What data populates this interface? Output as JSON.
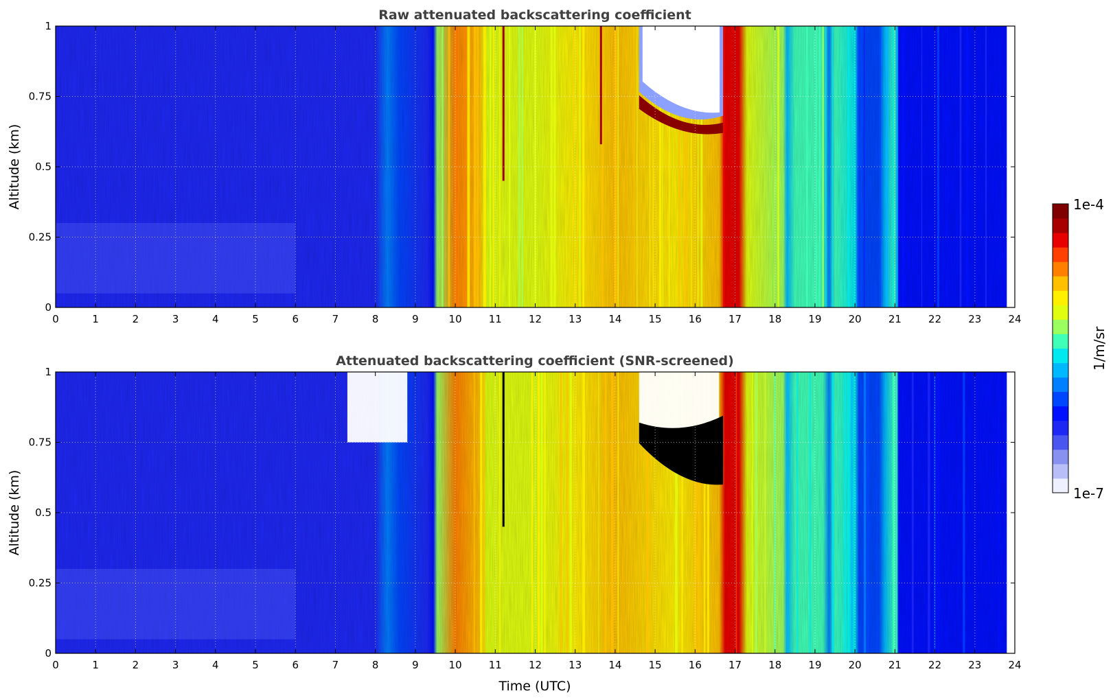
{
  "chart_data": [
    {
      "type": "heatmap",
      "title": "Raw attenuated backscattering coefficient",
      "xlabel": "",
      "ylabel": "Altitude (km)",
      "xlim": [
        0,
        24
      ],
      "ylim": [
        0,
        1
      ],
      "x_ticks": [
        "0",
        "1",
        "2",
        "3",
        "4",
        "5",
        "6",
        "7",
        "8",
        "9",
        "10",
        "11",
        "12",
        "13",
        "14",
        "15",
        "16",
        "17",
        "18",
        "19",
        "20",
        "21",
        "22",
        "23",
        "24"
      ],
      "y_ticks": [
        "0",
        "0.25",
        "0.5",
        "0.75",
        "1"
      ],
      "grid": true,
      "value_units": "1/m/sr",
      "value_scale": "log",
      "data_end_hour": 23.8,
      "background_profile": [
        {
          "t": 0,
          "v": 0.2
        },
        {
          "t": 6,
          "v": 0.2
        },
        {
          "t": 8,
          "v": 0.22
        },
        {
          "t": 8.3,
          "v": 0.36
        },
        {
          "t": 8.6,
          "v": 0.3
        },
        {
          "t": 9.3,
          "v": 0.22
        },
        {
          "t": 9.45,
          "v": 0.26
        },
        {
          "t": 9.55,
          "v": 0.58
        },
        {
          "t": 10,
          "v": 0.76
        },
        {
          "t": 10.6,
          "v": 0.74
        },
        {
          "t": 10.8,
          "v": 0.64
        },
        {
          "t": 11.5,
          "v": 0.62
        },
        {
          "t": 12,
          "v": 0.64
        },
        {
          "t": 13,
          "v": 0.66
        },
        {
          "t": 14,
          "v": 0.7
        },
        {
          "t": 15.5,
          "v": 0.68
        },
        {
          "t": 16.6,
          "v": 0.7
        },
        {
          "t": 16.75,
          "v": 0.88
        },
        {
          "t": 17.1,
          "v": 0.86
        },
        {
          "t": 17.3,
          "v": 0.62
        },
        {
          "t": 18.2,
          "v": 0.55
        },
        {
          "t": 18.3,
          "v": 0.42
        },
        {
          "t": 18.5,
          "v": 0.52
        },
        {
          "t": 19.2,
          "v": 0.52
        },
        {
          "t": 19.35,
          "v": 0.38
        },
        {
          "t": 19.5,
          "v": 0.5
        },
        {
          "t": 20,
          "v": 0.48
        },
        {
          "t": 20.1,
          "v": 0.32
        },
        {
          "t": 20.6,
          "v": 0.34
        },
        {
          "t": 20.75,
          "v": 0.44
        },
        {
          "t": 21,
          "v": 0.5
        },
        {
          "t": 21.1,
          "v": 0.28
        },
        {
          "t": 23.8,
          "v": 0.26
        }
      ],
      "cloud_layers": [
        {
          "t_start": 14.6,
          "t_end": 16.7,
          "base_km": 0.62,
          "top_km": 1.0,
          "peak": "1e-4"
        },
        {
          "t_start": 11.1,
          "t_end": 11.3,
          "base_km": 0.45,
          "top_km": 1.0,
          "peak": "1e-4"
        },
        {
          "t_start": 13.3,
          "t_end": 14.1,
          "base_km": 0.58,
          "top_km": 1.0,
          "peak": "1e-4"
        }
      ]
    },
    {
      "type": "heatmap",
      "title": "Attenuated backscattering coefficient (SNR-screened)",
      "xlabel": "Time (UTC)",
      "ylabel": "Altitude (km)",
      "xlim": [
        0,
        24
      ],
      "ylim": [
        0,
        1
      ],
      "x_ticks": [
        "0",
        "1",
        "2",
        "3",
        "4",
        "5",
        "6",
        "7",
        "8",
        "9",
        "10",
        "11",
        "12",
        "13",
        "14",
        "15",
        "16",
        "17",
        "18",
        "19",
        "20",
        "21",
        "22",
        "23",
        "24"
      ],
      "y_ticks": [
        "0",
        "0.25",
        "0.5",
        "0.75",
        "1"
      ],
      "grid": true,
      "value_units": "1/m/sr",
      "value_scale": "log",
      "data_end_hour": 23.8,
      "screened_regions": [
        {
          "t_start": 7.3,
          "t_end": 8.8,
          "base_km": 0.75,
          "top_km": 1.0
        },
        {
          "t_start": 14.6,
          "t_end": 16.6,
          "base_km": 0.8,
          "top_km": 1.0
        }
      ],
      "saturated_regions": [
        {
          "t_start": 14.6,
          "t_end": 16.7,
          "base_km": 0.6,
          "top_km": 0.82
        },
        {
          "t_start": 11.1,
          "t_end": 11.3,
          "base_km": 0.45,
          "top_km": 1.0
        }
      ]
    }
  ],
  "colorbar": {
    "label": "1/m/sr",
    "max_label": "1e-4",
    "min_label": "1e-7",
    "colors": [
      "#eef0ff",
      "#b8bff8",
      "#8890f0",
      "#4a56f0",
      "#1e28f5",
      "#0010ff",
      "#0046ff",
      "#0080ff",
      "#00b8ff",
      "#00e8f0",
      "#40ffb8",
      "#9cff60",
      "#e0ff10",
      "#fff000",
      "#ffc000",
      "#ff8000",
      "#ff4000",
      "#e80000",
      "#a80000",
      "#800000"
    ]
  }
}
